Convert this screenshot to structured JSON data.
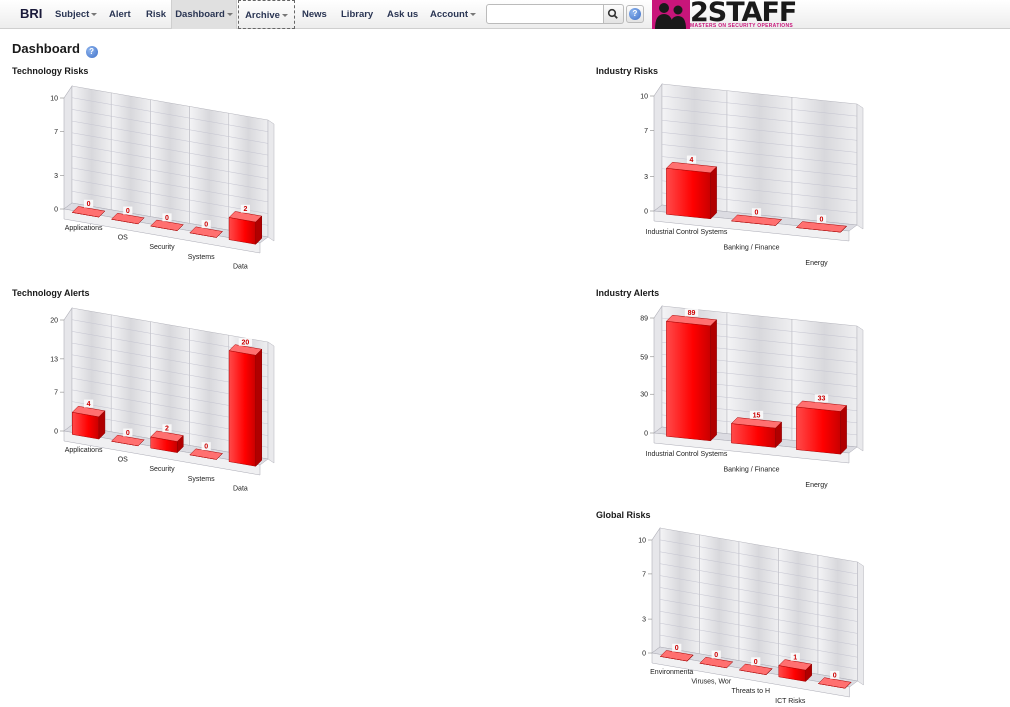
{
  "nav": {
    "brand": "BRI",
    "items": [
      {
        "label": "Subject",
        "dropdown": true
      },
      {
        "label": "Alert",
        "dropdown": false
      },
      {
        "label": "Risk",
        "dropdown": false
      },
      {
        "label": "Dashboard",
        "dropdown": true
      },
      {
        "label": "Archive",
        "dropdown": true
      },
      {
        "label": "News",
        "dropdown": false
      },
      {
        "label": "Library",
        "dropdown": false
      },
      {
        "label": "Ask us",
        "dropdown": false
      },
      {
        "label": "Account",
        "dropdown": true
      }
    ],
    "search": {
      "value": "",
      "placeholder": ""
    },
    "help_glyph": "?"
  },
  "logo": {
    "text": "2STAFF",
    "tagline": "MASTERS ON SECURITY OPERATIONS",
    "color": "#c8157a"
  },
  "page": {
    "title": "Dashboard",
    "help_glyph": "?"
  },
  "sections": {
    "tech_risks": "Technology Risks",
    "industry_risks": "Industry Risks",
    "tech_alerts": "Technology Alerts",
    "industry_alerts": "Industry Alerts",
    "global_risks": "Global Risks"
  },
  "chart_data": [
    {
      "id": "tech_risks",
      "type": "bar",
      "title": "Technology Risks",
      "categories": [
        "Applications",
        "OS",
        "Security",
        "Systems",
        "Data"
      ],
      "values": [
        0,
        0,
        0,
        0,
        2
      ],
      "yticks": [
        0,
        3,
        7,
        10
      ],
      "ylim": [
        0,
        10
      ],
      "bar_color": "#ff0000"
    },
    {
      "id": "industry_risks",
      "type": "bar",
      "title": "Industry Risks",
      "categories": [
        "Industrial Control Systems",
        "Banking / Finance",
        "Energy"
      ],
      "values": [
        4,
        0,
        0
      ],
      "yticks": [
        0,
        3,
        7,
        10
      ],
      "ylim": [
        0,
        10
      ],
      "bar_color": "#ff0000"
    },
    {
      "id": "tech_alerts",
      "type": "bar",
      "title": "Technology Alerts",
      "categories": [
        "Applications",
        "OS",
        "Security",
        "Systems",
        "Data"
      ],
      "values": [
        4,
        0,
        2,
        0,
        20
      ],
      "yticks": [
        0,
        7,
        13,
        20
      ],
      "ylim": [
        0,
        20
      ],
      "bar_color": "#ff0000"
    },
    {
      "id": "industry_alerts",
      "type": "bar",
      "title": "Industry Alerts",
      "categories": [
        "Industrial Control Systems",
        "Banking / Finance",
        "Energy"
      ],
      "values": [
        89,
        15,
        33
      ],
      "yticks": [
        0,
        30,
        59,
        89
      ],
      "ylim": [
        0,
        89
      ],
      "bar_color": "#ff0000"
    },
    {
      "id": "global_risks",
      "type": "bar",
      "title": "Global Risks",
      "categories": [
        "Environmenta",
        "Viruses, Wor",
        "Threats to H",
        "ICT Risks",
        ""
      ],
      "values": [
        0,
        0,
        0,
        1,
        0
      ],
      "yticks": [
        0,
        3,
        7,
        10
      ],
      "ylim": [
        0,
        10
      ],
      "bar_color": "#ff0000"
    }
  ]
}
